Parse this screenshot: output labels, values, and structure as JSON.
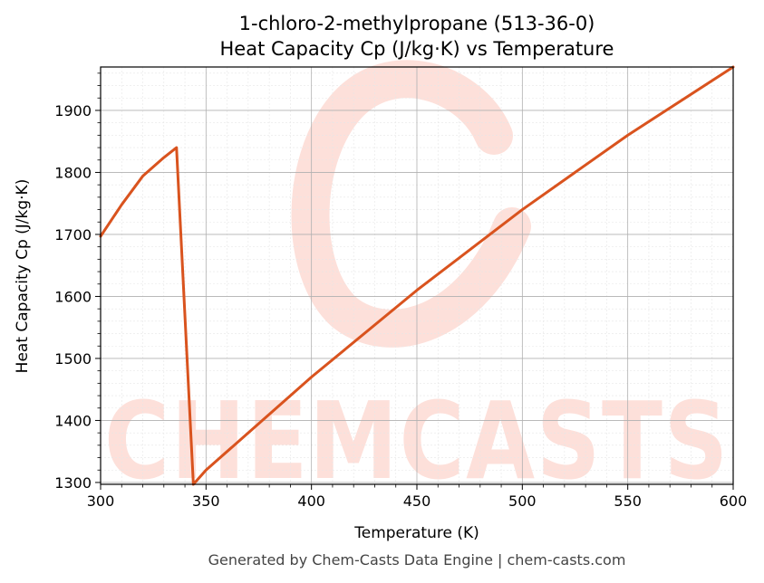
{
  "chart_data": {
    "type": "line",
    "title_line1": "1-chloro-2-methylpropane (513-36-0)",
    "title_line2": "Heat Capacity Cp (J/kg·K) vs Temperature",
    "xlabel": "Temperature (K)",
    "ylabel": "Heat Capacity Cp (J/kg·K)",
    "xlim": [
      300,
      600
    ],
    "ylim": [
      1297,
      1970
    ],
    "x_ticks": [
      300,
      350,
      400,
      450,
      500,
      550,
      600
    ],
    "y_ticks": [
      1300,
      1400,
      1500,
      1600,
      1700,
      1800,
      1900
    ],
    "grid": true,
    "series": [
      {
        "color": "#d9531e",
        "points": [
          [
            300,
            1697
          ],
          [
            310,
            1748
          ],
          [
            320,
            1794
          ],
          [
            330,
            1824
          ],
          [
            336,
            1840
          ],
          [
            344,
            1297
          ],
          [
            350,
            1320
          ],
          [
            400,
            1470
          ],
          [
            450,
            1610
          ],
          [
            500,
            1740
          ],
          [
            550,
            1860
          ],
          [
            600,
            1970
          ]
        ]
      }
    ]
  },
  "watermark": "CHEMCASTS",
  "footer": "Generated by Chem-Casts Data Engine | chem-casts.com"
}
